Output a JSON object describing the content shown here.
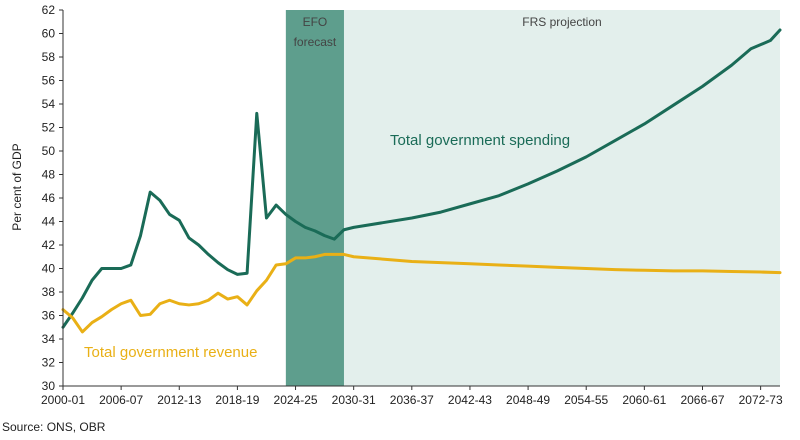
{
  "chart_data": {
    "type": "line",
    "ylabel": "Per cent of GDP",
    "ylim": [
      30,
      62
    ],
    "yticks": [
      30,
      32,
      34,
      36,
      38,
      40,
      42,
      44,
      46,
      48,
      50,
      52,
      54,
      56,
      58,
      60,
      62
    ],
    "x_start": "2000-01",
    "x_end": "2074-75",
    "xticks": [
      "2000-01",
      "2006-07",
      "2012-13",
      "2018-19",
      "2024-25",
      "2030-31",
      "2036-37",
      "2042-43",
      "2048-49",
      "2054-55",
      "2060-61",
      "2066-67",
      "2072-73"
    ],
    "grid": false,
    "bands": [
      {
        "label_lines": [
          "EFO",
          "forecast"
        ],
        "from": "2023-24",
        "to": "2029-30",
        "color": "#5e9e8d"
      },
      {
        "label_lines": [
          "FRS projection"
        ],
        "from": "2029-30",
        "to": "2074-75",
        "color": "#e3efec"
      }
    ],
    "series": [
      {
        "name": "Total government spending",
        "color": "#1a6b57",
        "x": [
          "2000-01",
          "2001-02",
          "2002-03",
          "2003-04",
          "2004-05",
          "2005-06",
          "2006-07",
          "2007-08",
          "2008-09",
          "2009-10",
          "2010-11",
          "2011-12",
          "2012-13",
          "2013-14",
          "2014-15",
          "2015-16",
          "2016-17",
          "2017-18",
          "2018-19",
          "2019-20",
          "2020-21",
          "2021-22",
          "2022-23",
          "2023-24",
          "2024-25",
          "2025-26",
          "2026-27",
          "2027-28",
          "2028-29",
          "2029-30",
          "2030-31",
          "2033-34",
          "2036-37",
          "2039-40",
          "2042-43",
          "2045-46",
          "2048-49",
          "2051-52",
          "2054-55",
          "2057-58",
          "2060-61",
          "2063-64",
          "2066-67",
          "2069-70",
          "2071-72",
          "2073-74",
          "2074-75"
        ],
        "values": [
          35.0,
          36.2,
          37.5,
          39.0,
          40.0,
          40.0,
          40.0,
          40.3,
          42.8,
          46.5,
          45.8,
          44.6,
          44.1,
          42.6,
          42.0,
          41.2,
          40.5,
          39.9,
          39.5,
          39.6,
          53.2,
          44.3,
          45.4,
          44.6,
          44.0,
          43.5,
          43.2,
          42.8,
          42.5,
          43.3,
          43.5,
          43.9,
          44.3,
          44.8,
          45.5,
          46.2,
          47.2,
          48.3,
          49.5,
          50.9,
          52.3,
          53.9,
          55.5,
          57.3,
          58.7,
          59.4,
          60.3
        ]
      },
      {
        "name": "Total government revenue",
        "color": "#e9b016",
        "x": [
          "2000-01",
          "2001-02",
          "2002-03",
          "2003-04",
          "2004-05",
          "2005-06",
          "2006-07",
          "2007-08",
          "2008-09",
          "2009-10",
          "2010-11",
          "2011-12",
          "2012-13",
          "2013-14",
          "2014-15",
          "2015-16",
          "2016-17",
          "2017-18",
          "2018-19",
          "2019-20",
          "2020-21",
          "2021-22",
          "2022-23",
          "2023-24",
          "2024-25",
          "2025-26",
          "2026-27",
          "2027-28",
          "2028-29",
          "2029-30",
          "2030-31",
          "2033-34",
          "2036-37",
          "2039-40",
          "2042-43",
          "2045-46",
          "2048-49",
          "2051-52",
          "2054-55",
          "2057-58",
          "2060-61",
          "2063-64",
          "2066-67",
          "2069-70",
          "2072-73",
          "2074-75"
        ],
        "values": [
          36.5,
          35.8,
          34.6,
          35.4,
          35.9,
          36.5,
          37.0,
          37.3,
          36.0,
          36.1,
          37.0,
          37.3,
          37.0,
          36.9,
          37.0,
          37.3,
          37.9,
          37.4,
          37.6,
          36.9,
          38.1,
          39.0,
          40.3,
          40.4,
          40.9,
          40.9,
          41.0,
          41.2,
          41.2,
          41.2,
          41.0,
          40.8,
          40.6,
          40.5,
          40.4,
          40.3,
          40.2,
          40.1,
          40.0,
          39.9,
          39.85,
          39.8,
          39.8,
          39.75,
          39.7,
          39.65
        ]
      }
    ],
    "source": "Source: ONS, OBR"
  }
}
